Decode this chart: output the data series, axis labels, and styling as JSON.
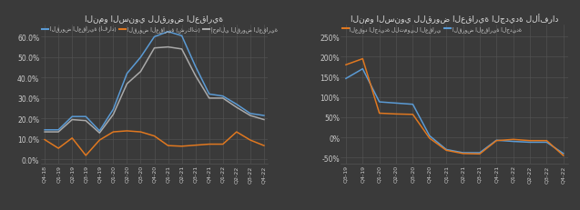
{
  "bg_color": "#3a3a3a",
  "grid_color": "#555555",
  "text_color": "#cccccc",
  "title_color": "#dddddd",
  "left": {
    "title": "النمو السنوي للقروض العقارية",
    "x_labels": [
      "Q4-18",
      "Q1-19",
      "Q2-19",
      "Q3-19",
      "Q4-19",
      "Q1-20",
      "Q2-20",
      "Q3-20",
      "Q4-20",
      "Q1-21",
      "Q2-21",
      "Q3-21",
      "Q4-21",
      "Q1-22",
      "Q2-22",
      "Q3-22",
      "Q4-22"
    ],
    "series": [
      {
        "label": "إجمالي القروض العقارية",
        "color": "#aaaaaa",
        "values": [
          0.135,
          0.135,
          0.195,
          0.19,
          0.13,
          0.22,
          0.37,
          0.43,
          0.545,
          0.55,
          0.54,
          0.41,
          0.3,
          0.3,
          0.255,
          0.215,
          0.195
        ]
      },
      {
        "label": "القروض العقارية (شركات)",
        "color": "#e07820",
        "values": [
          0.097,
          0.055,
          0.105,
          0.02,
          0.095,
          0.135,
          0.14,
          0.135,
          0.115,
          0.068,
          0.065,
          0.07,
          0.075,
          0.075,
          0.135,
          0.095,
          0.068
        ]
      },
      {
        "label": "القروض العقارية (أفراد)",
        "color": "#5b9bd5",
        "values": [
          0.145,
          0.145,
          0.21,
          0.21,
          0.14,
          0.245,
          0.42,
          0.5,
          0.6,
          0.625,
          0.605,
          0.455,
          0.32,
          0.31,
          0.27,
          0.225,
          0.215
        ]
      }
    ],
    "ylim": [
      -0.02,
      0.66
    ],
    "yticks": [
      0.0,
      0.1,
      0.2,
      0.3,
      0.4,
      0.5,
      0.6
    ]
  },
  "right": {
    "title": "النمو السنوي للقروض العقارية الجديدة للأفراد",
    "x_labels": [
      "Q3-19",
      "Q4-19",
      "Q1-20",
      "Q2-20",
      "Q3-20",
      "Q4-20",
      "Q1-21",
      "Q2-21",
      "Q3-21",
      "Q4-21",
      "Q1-22",
      "Q2-22",
      "Q3-22",
      "Q4-22"
    ],
    "series": [
      {
        "label": "القروض العقارية الجديدة",
        "color": "#5b9bd5",
        "values": [
          1.46,
          1.7,
          0.88,
          0.85,
          0.82,
          0.04,
          -0.3,
          -0.38,
          -0.38,
          -0.07,
          -0.1,
          -0.12,
          -0.12,
          -0.4
        ]
      },
      {
        "label": "العقود الجديدة للتمويل العقاري",
        "color": "#e07820",
        "values": [
          1.8,
          1.95,
          0.6,
          0.58,
          0.57,
          -0.02,
          -0.32,
          -0.4,
          -0.41,
          -0.08,
          -0.05,
          -0.08,
          -0.08,
          -0.45
        ]
      }
    ],
    "ylim": [
      -0.65,
      2.8
    ],
    "yticks": [
      -0.5,
      0.0,
      0.5,
      1.0,
      1.5,
      2.0,
      2.5
    ]
  }
}
